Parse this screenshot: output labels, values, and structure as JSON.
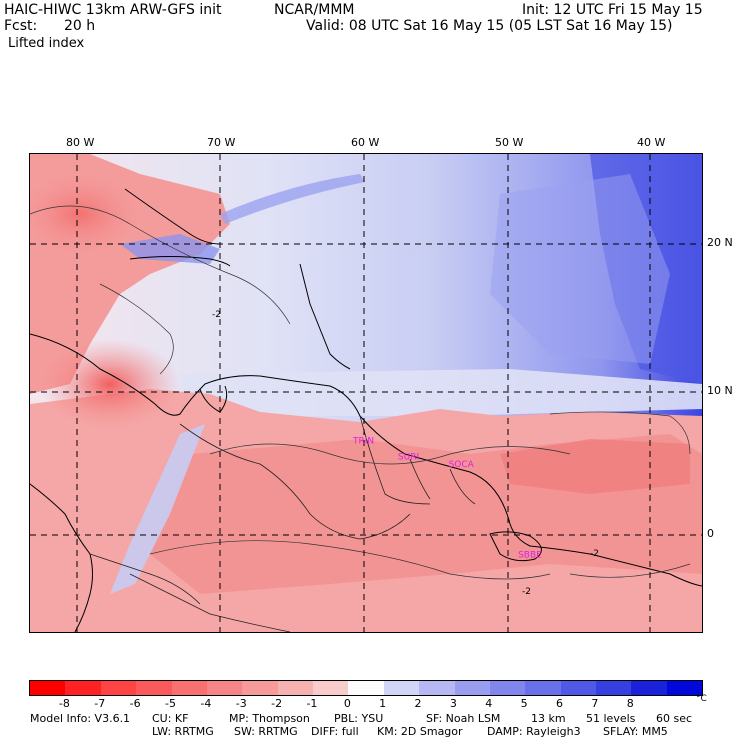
{
  "header": {
    "model_title": "HAIC-HIWC 13km ARW-GFS init",
    "org": "NCAR/MMM",
    "init": "Init: 12 UTC Fri 15 May 15",
    "fcst_label": "Fcst:",
    "fcst_value": "20 h",
    "valid": "Valid: 08 UTC Sat 16 May 15 (05 LST Sat 16 May 15)",
    "field": "Lifted index"
  },
  "map": {
    "lon_labels": [
      "80 W",
      "70 W",
      "60 W",
      "50 W",
      "40 W"
    ],
    "lon_values": [
      -80,
      -70,
      -60,
      -50,
      -40
    ],
    "lat_labels": [
      "20 N",
      "10 N",
      "0"
    ],
    "lat_values": [
      20,
      10,
      0
    ],
    "lon_range": [
      -82.2,
      -35.8
    ],
    "lat_range": [
      -6.5,
      26.2
    ],
    "stations": [
      {
        "label": "TRIN",
        "lon": -59.9,
        "lat": 6.4
      },
      {
        "label": "SURI",
        "lon": -56.8,
        "lat": 5.3
      },
      {
        "label": "SOCA",
        "lon": -53.3,
        "lat": 4.8
      },
      {
        "label": "SBBE",
        "lon": -48.5,
        "lat": -1.4
      }
    ],
    "contour_labels": [
      "-2",
      "-2",
      "-2"
    ],
    "colors": {
      "station": "#e020e0",
      "grid": "#000000",
      "coast": "#000000"
    }
  },
  "colorbar": {
    "ticks": [
      "-8",
      "-7",
      "-6",
      "-5",
      "-4",
      "-3",
      "-2",
      "-1",
      "0",
      "1",
      "2",
      "3",
      "4",
      "5",
      "6",
      "7",
      "8"
    ],
    "unit": "°C",
    "colors": [
      "#ff0000",
      "#ff2222",
      "#fe4444",
      "#fb5a5a",
      "#f87070",
      "#f68585",
      "#f69a9a",
      "#f7b1b1",
      "#f9cccc",
      "#fcfcfc",
      "#d3d5f6",
      "#b5b8f2",
      "#9a9ef0",
      "#8086ec",
      "#6a70ea",
      "#5058e6",
      "#3640e0",
      "#1a22dc",
      "#0008dc"
    ]
  },
  "footer": {
    "line1": [
      "Model Info: V3.6.1",
      "CU: KF",
      "MP: Thompson",
      "PBL: YSU",
      "SF: Noah LSM",
      "13 km",
      "51 levels",
      "60 sec"
    ],
    "line2": [
      "LW: RRTMG",
      "SW: RRTMG",
      "DIFF: full",
      "KM: 2D Smagor",
      "DAMP: Rayleigh3",
      "SFLAY: MM5"
    ]
  }
}
